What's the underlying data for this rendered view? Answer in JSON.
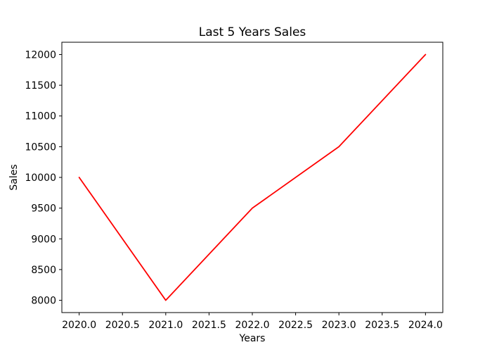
{
  "figure": {
    "background": "#ffffff",
    "frame_color": "#000000"
  },
  "chart_data": {
    "type": "line",
    "title": "Last 5 Years Sales",
    "xlabel": "Years",
    "ylabel": "Sales",
    "x": [
      2020,
      2021,
      2022,
      2023,
      2024
    ],
    "y": [
      10000,
      8000,
      9500,
      10500,
      12000
    ],
    "series": [
      {
        "name": "Sales",
        "values": [
          10000,
          8000,
          9500,
          10500,
          12000
        ]
      }
    ],
    "line_color": "#ff0000",
    "grid": false,
    "legend_position": "none",
    "xlim": [
      2019.8,
      2024.2
    ],
    "ylim": [
      7800,
      12200
    ],
    "x_tick_values": [
      2020.0,
      2020.5,
      2021.0,
      2021.5,
      2022.0,
      2022.5,
      2023.0,
      2023.5,
      2024.0
    ],
    "x_tick_labels": [
      "2020.0",
      "2020.5",
      "2021.0",
      "2021.5",
      "2022.0",
      "2022.5",
      "2023.0",
      "2023.5",
      "2024.0"
    ],
    "y_tick_values": [
      8000,
      8500,
      9000,
      9500,
      10000,
      10500,
      11000,
      11500,
      12000
    ],
    "y_tick_labels": [
      "8000",
      "8500",
      "9000",
      "9500",
      "10000",
      "10500",
      "11000",
      "11500",
      "12000"
    ]
  }
}
